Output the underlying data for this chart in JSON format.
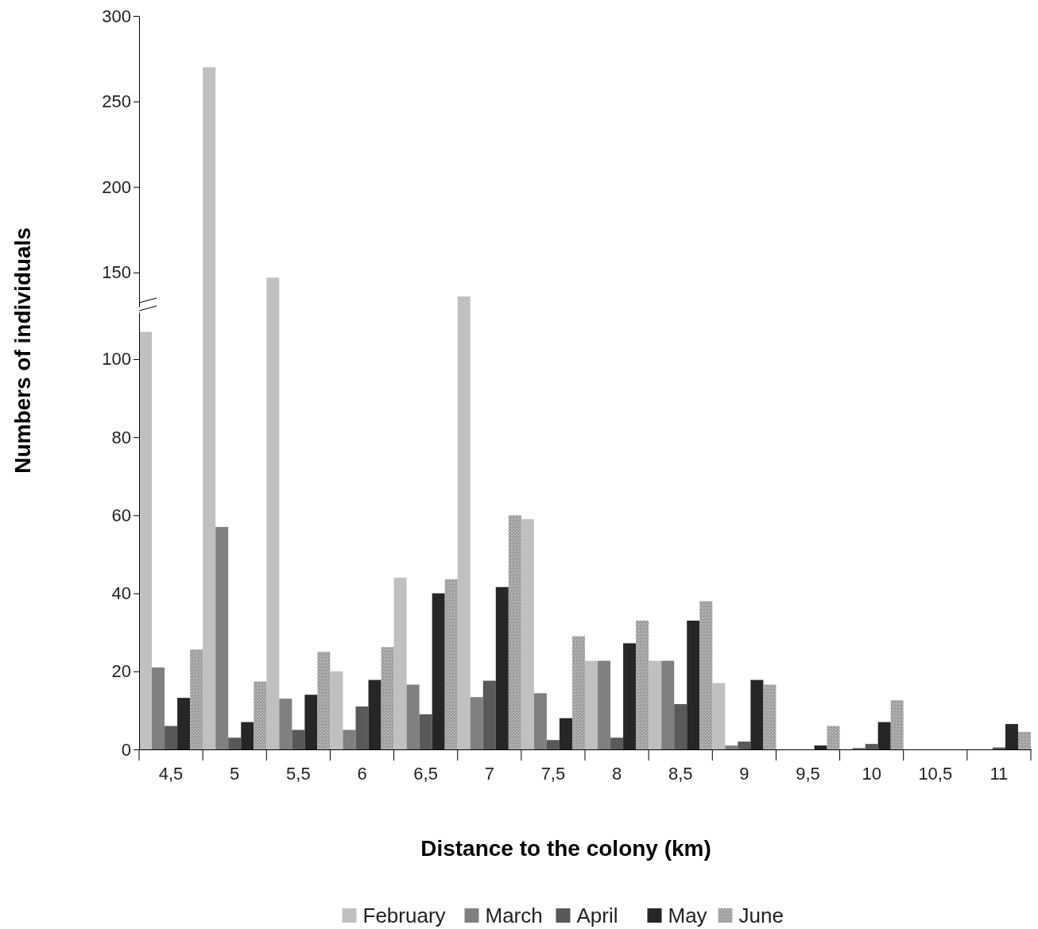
{
  "chart_data": [
    {
      "type": "bar",
      "categories": [
        "4,5",
        "5",
        "5,5",
        "6",
        "6,5",
        "7",
        "7,5",
        "8",
        "8,5",
        "9",
        "9,5",
        "10",
        "10,5",
        "11"
      ],
      "ylim": [
        130,
        300
      ],
      "yticks": [
        150,
        200,
        250,
        300
      ],
      "tick_labels": "y",
      "grid": false,
      "series": [
        {
          "color": "#c0c0c0",
          "values": [
            null,
            270,
            147,
            null,
            null,
            136,
            null,
            null,
            null,
            null,
            null,
            null,
            null,
            null
          ]
        },
        {
          "color": "#808080",
          "values": [
            null,
            null,
            null,
            null,
            null,
            null,
            null,
            null,
            null,
            null,
            null,
            null,
            null,
            null
          ]
        },
        {
          "color": "#595959",
          "values": [
            null,
            null,
            null,
            null,
            null,
            null,
            null,
            null,
            null,
            null,
            null,
            null,
            null,
            null
          ]
        },
        {
          "color": "#262626",
          "values": [
            null,
            null,
            null,
            null,
            null,
            null,
            null,
            null,
            null,
            null,
            null,
            null,
            null,
            null
          ]
        },
        {
          "color": "#9a9a9a",
          "values": [
            null,
            null,
            null,
            null,
            null,
            null,
            null,
            null,
            null,
            null,
            null,
            null,
            null,
            null
          ]
        }
      ]
    },
    {
      "type": "bar",
      "xlabel": "Distance to the colony (km)",
      "ylabel": "Numbers of individuals",
      "categories": [
        "4,5",
        "5",
        "5,5",
        "6",
        "6,5",
        "7",
        "7,5",
        "8",
        "8,5",
        "9",
        "9,5",
        "10",
        "10,5",
        "11"
      ],
      "ylim": [
        0,
        112
      ],
      "yticks": [
        0,
        20,
        40,
        60,
        80,
        100
      ],
      "legend": "bottom",
      "grid": false,
      "series": [
        {
          "name": "February",
          "color": "#c0c0c0",
          "values": [
            107,
            null,
            null,
            20,
            44,
            null,
            59,
            22.7,
            22.7,
            17,
            0,
            0,
            0,
            0
          ]
        },
        {
          "name": "March",
          "color": "#808080",
          "values": [
            21,
            57,
            13,
            5,
            16.6,
            13.4,
            14.4,
            22.7,
            22.7,
            1,
            0,
            0.4,
            0,
            0
          ]
        },
        {
          "name": "April",
          "color": "#595959",
          "values": [
            6,
            3,
            5,
            11,
            9,
            17.6,
            2.4,
            3,
            11.6,
            2,
            0,
            1.4,
            0,
            0.5
          ]
        },
        {
          "name": "May",
          "color": "#262626",
          "values": [
            13.2,
            7,
            14,
            17.8,
            40,
            41.6,
            8,
            27.2,
            33,
            17.8,
            1,
            7,
            0,
            6.5
          ]
        },
        {
          "name": "June",
          "color": "#9a9a9a",
          "values": [
            25.6,
            17.4,
            25,
            26.2,
            43.6,
            60,
            29,
            33,
            38,
            16.6,
            6,
            12.6,
            0,
            4.5
          ]
        }
      ]
    }
  ]
}
